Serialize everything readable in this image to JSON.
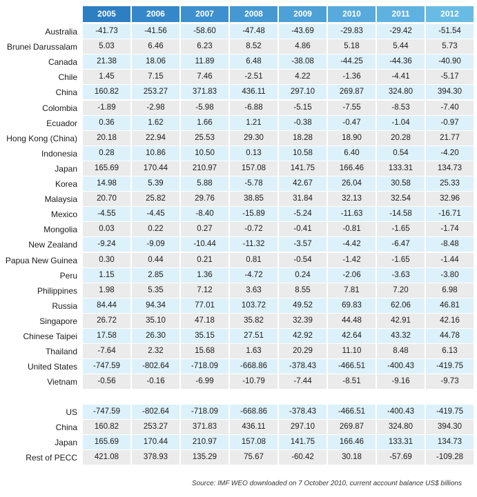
{
  "header": {
    "years": [
      "2005",
      "2006",
      "2007",
      "2008",
      "2009",
      "2010",
      "2011",
      "2012"
    ],
    "colors": [
      "#2e7ec2",
      "#3587c8",
      "#3d8fcd",
      "#4698d1",
      "#4ea1d6",
      "#57aadb",
      "#5fb2df",
      "#68bbe3"
    ]
  },
  "table": {
    "rows": [
      {
        "label": "Australia",
        "values": [
          "-41.73",
          "-41.56",
          "-58.60",
          "-47.48",
          "-43.69",
          "-29.83",
          "-29.42",
          "-51.54"
        ]
      },
      {
        "label": "Brunei Darussalam",
        "values": [
          "5.03",
          "6.46",
          "6.23",
          "8.52",
          "4.86",
          "5.18",
          "5.44",
          "5.73"
        ]
      },
      {
        "label": "Canada",
        "values": [
          "21.38",
          "18.06",
          "11.89",
          "6.48",
          "-38.08",
          "-44.25",
          "-44.36",
          "-40.90"
        ]
      },
      {
        "label": "Chile",
        "values": [
          "1.45",
          "7.15",
          "7.46",
          "-2.51",
          "4.22",
          "-1.36",
          "-4.41",
          "-5.17"
        ]
      },
      {
        "label": "China",
        "values": [
          "160.82",
          "253.27",
          "371.83",
          "436.11",
          "297.10",
          "269.87",
          "324.80",
          "394.30"
        ]
      },
      {
        "label": "Colombia",
        "values": [
          "-1.89",
          "-2.98",
          "-5.98",
          "-6.88",
          "-5.15",
          "-7.55",
          "-8.53",
          "-7.40"
        ]
      },
      {
        "label": "Ecuador",
        "values": [
          "0.36",
          "1.62",
          "1.66",
          "1.21",
          "-0.38",
          "-0.47",
          "-1.04",
          "-0.97"
        ]
      },
      {
        "label": "Hong Kong (China)",
        "values": [
          "20.18",
          "22.94",
          "25.53",
          "29.30",
          "18.28",
          "18.90",
          "20.28",
          "21.77"
        ]
      },
      {
        "label": "Indonesia",
        "values": [
          "0.28",
          "10.86",
          "10.50",
          "0.13",
          "10.58",
          "6.40",
          "0.54",
          "-4.20"
        ]
      },
      {
        "label": "Japan",
        "values": [
          "165.69",
          "170.44",
          "210.97",
          "157.08",
          "141.75",
          "166.46",
          "133.31",
          "134.73"
        ]
      },
      {
        "label": "Korea",
        "values": [
          "14.98",
          "5.39",
          "5.88",
          "-5.78",
          "42.67",
          "26.04",
          "30.58",
          "25.33"
        ]
      },
      {
        "label": "Malaysia",
        "values": [
          "20.70",
          "25.82",
          "29.76",
          "38.85",
          "31.84",
          "32.13",
          "32.54",
          "32.96"
        ]
      },
      {
        "label": "Mexico",
        "values": [
          "-4.55",
          "-4.45",
          "-8.40",
          "-15.89",
          "-5.24",
          "-11.63",
          "-14.58",
          "-16.71"
        ]
      },
      {
        "label": "Mongolia",
        "values": [
          "0.03",
          "0.22",
          "0.27",
          "-0.72",
          "-0.41",
          "-0.81",
          "-1.65",
          "-1.74"
        ]
      },
      {
        "label": "New Zealand",
        "values": [
          "-9.24",
          "-9.09",
          "-10.44",
          "-11.32",
          "-3.57",
          "-4.42",
          "-6.47",
          "-8.48"
        ]
      },
      {
        "label": "Papua New Guinea",
        "values": [
          "0.30",
          "0.44",
          "0.21",
          "0.81",
          "-0.54",
          "-1.42",
          "-1.65",
          "-1.44"
        ]
      },
      {
        "label": "Peru",
        "values": [
          "1.15",
          "2.85",
          "1.36",
          "-4.72",
          "0.24",
          "-2.06",
          "-3.63",
          "-3.80"
        ]
      },
      {
        "label": "Philippines",
        "values": [
          "1.98",
          "5.35",
          "7.12",
          "3.63",
          "8.55",
          "7.81",
          "7.20",
          "6.98"
        ]
      },
      {
        "label": "Russia",
        "values": [
          "84.44",
          "94.34",
          "77.01",
          "103.72",
          "49.52",
          "69.83",
          "62.06",
          "46.81"
        ]
      },
      {
        "label": "Singapore",
        "values": [
          "26.72",
          "35.10",
          "47.18",
          "35.82",
          "32.39",
          "44.48",
          "42.91",
          "42.16"
        ]
      },
      {
        "label": "Chinese Taipei",
        "values": [
          "17.58",
          "26.30",
          "35.15",
          "27.51",
          "42.92",
          "42.64",
          "43.32",
          "44.78"
        ]
      },
      {
        "label": "Thailand",
        "values": [
          "-7.64",
          "2.32",
          "15.68",
          "1.63",
          "20.29",
          "11.10",
          "8.48",
          "6.13"
        ]
      },
      {
        "label": "United States",
        "values": [
          "-747.59",
          "-802.64",
          "-718.09",
          "-668.86",
          "-378.43",
          "-466.51",
          "-400.43",
          "-419.75"
        ]
      },
      {
        "label": "Vietnam",
        "values": [
          "-0.56",
          "-0.16",
          "-6.99",
          "-10.79",
          "-7.44",
          "-8.51",
          "-9.16",
          "-9.73"
        ]
      }
    ]
  },
  "summary": {
    "rows": [
      {
        "label": "US",
        "values": [
          "-747.59",
          "-802.64",
          "-718.09",
          "-668.86",
          "-378.43",
          "-466.51",
          "-400.43",
          "-419.75"
        ]
      },
      {
        "label": "China",
        "values": [
          "160.82",
          "253.27",
          "371.83",
          "436.11",
          "297.10",
          "269.87",
          "324.80",
          "394.30"
        ]
      },
      {
        "label": "Japan",
        "values": [
          "165.69",
          "170.44",
          "210.97",
          "157.08",
          "141.75",
          "166.46",
          "133.31",
          "134.73"
        ]
      },
      {
        "label": "Rest of PECC",
        "values": [
          "421.08",
          "378.93",
          "135.29",
          "75.67",
          "-60.42",
          "30.18",
          "-57.69",
          "-109.28"
        ]
      }
    ]
  },
  "source": "Source: IMF WEO downloaded on 7 October 2010, current account balance US$ billions"
}
